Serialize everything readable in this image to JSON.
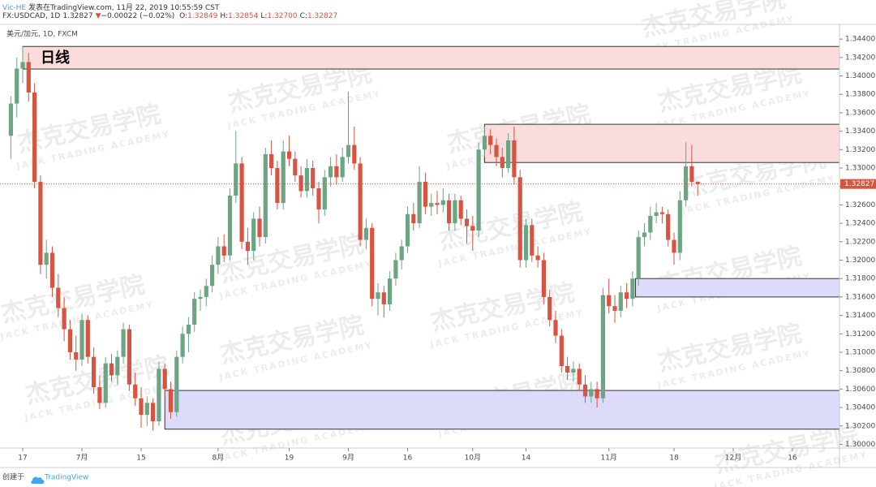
{
  "header": {
    "author": "Vic-HE",
    "published": "发表在TradingView.com, 11月 22, 2019 10:55:59 CST",
    "symbol": "FX:USDCAD, 1D",
    "last": "1.32827",
    "arrow": "▼",
    "change": "−0.00022 (−0.02%)",
    "ohlc": [
      {
        "label": "O:",
        "value": "1.32849"
      },
      {
        "label": "H:",
        "value": "1.32854"
      },
      {
        "label": "L:",
        "value": "1.32700"
      },
      {
        "label": "C:",
        "value": "1.32827"
      }
    ]
  },
  "footer": {
    "created": "创建于",
    "brand": "TradingView"
  },
  "watermark": {
    "cn": "杰克交易学院",
    "en": "JACK TRADING ACADEMY"
  },
  "chart_data": {
    "type": "candlestick",
    "pane_label": "美元/加元, 1D, FXCM",
    "up_color": "#6ba583",
    "down_color": "#d75442",
    "price_line_color": "#d75442",
    "ylim": [
      1.2996,
      1.3456
    ],
    "yticks": [
      {
        "value": 1.3,
        "label": "1.30000"
      },
      {
        "value": 1.302,
        "label": "1.30200"
      },
      {
        "value": 1.304,
        "label": "1.30400"
      },
      {
        "value": 1.306,
        "label": "1.30600"
      },
      {
        "value": 1.308,
        "label": "1.30800"
      },
      {
        "value": 1.31,
        "label": "1.31000"
      },
      {
        "value": 1.312,
        "label": "1.31200"
      },
      {
        "value": 1.314,
        "label": "1.31400"
      },
      {
        "value": 1.316,
        "label": "1.31600"
      },
      {
        "value": 1.318,
        "label": "1.31800"
      },
      {
        "value": 1.32,
        "label": "1.32000"
      },
      {
        "value": 1.322,
        "label": "1.32200"
      },
      {
        "value": 1.324,
        "label": "1.32400"
      },
      {
        "value": 1.326,
        "label": "1.32600"
      },
      {
        "value": 1.328,
        "label": "1.32800"
      },
      {
        "value": 1.33,
        "label": "1.33000"
      },
      {
        "value": 1.332,
        "label": "1.33200"
      },
      {
        "value": 1.334,
        "label": "1.33400"
      },
      {
        "value": 1.336,
        "label": "1.33600"
      },
      {
        "value": 1.338,
        "label": "1.33800"
      },
      {
        "value": 1.34,
        "label": "1.34000"
      },
      {
        "value": 1.342,
        "label": "1.34200"
      },
      {
        "value": 1.344,
        "label": "1.34400"
      }
    ],
    "categories": [
      null,
      null,
      "17",
      null,
      null,
      null,
      null,
      null,
      null,
      null,
      null,
      null,
      "7月",
      null,
      null,
      null,
      null,
      null,
      null,
      null,
      null,
      null,
      "15",
      null,
      null,
      null,
      null,
      null,
      null,
      null,
      null,
      null,
      null,
      null,
      null,
      "8月",
      null,
      null,
      null,
      null,
      null,
      null,
      null,
      null,
      null,
      null,
      null,
      "19",
      null,
      null,
      null,
      null,
      null,
      null,
      null,
      null,
      null,
      "9月",
      null,
      null,
      null,
      null,
      null,
      null,
      null,
      null,
      null,
      "16",
      null,
      null,
      null,
      null,
      null,
      null,
      null,
      null,
      null,
      null,
      "10月",
      null,
      null,
      null,
      null,
      null,
      null,
      null,
      null,
      "14",
      null,
      null,
      null,
      null,
      null,
      null,
      null,
      null,
      null,
      null,
      null,
      null,
      null,
      "11月",
      null,
      null,
      null,
      null,
      null,
      null,
      null,
      null,
      null,
      null,
      "18",
      null,
      null,
      null,
      null,
      null,
      null,
      null,
      null,
      null,
      "12月",
      null,
      null,
      null,
      null,
      null,
      null,
      null,
      null,
      null,
      "16"
    ],
    "ohlc": [
      [
        1.3335,
        1.3378,
        1.331,
        1.337
      ],
      [
        1.337,
        1.342,
        1.3355,
        1.3408
      ],
      [
        1.3408,
        1.3432,
        1.3392,
        1.3415
      ],
      [
        1.3415,
        1.3425,
        1.3372,
        1.3382
      ],
      [
        1.3382,
        1.3392,
        1.3278,
        1.3285
      ],
      [
        1.3285,
        1.3292,
        1.3185,
        1.3195
      ],
      [
        1.3195,
        1.3222,
        1.318,
        1.3208
      ],
      [
        1.3208,
        1.3215,
        1.316,
        1.317
      ],
      [
        1.317,
        1.3185,
        1.3138,
        1.3148
      ],
      [
        1.3148,
        1.316,
        1.3112,
        1.3125
      ],
      [
        1.3125,
        1.3135,
        1.3092,
        1.31
      ],
      [
        1.31,
        1.3118,
        1.308,
        1.3092
      ],
      [
        1.3092,
        1.3142,
        1.3085,
        1.3135
      ],
      [
        1.3135,
        1.314,
        1.3088,
        1.3095
      ],
      [
        1.3095,
        1.3105,
        1.3055,
        1.3062
      ],
      [
        1.3062,
        1.3075,
        1.3038,
        1.3045
      ],
      [
        1.3045,
        1.3095,
        1.304,
        1.3088
      ],
      [
        1.3088,
        1.3098,
        1.3068,
        1.3075
      ],
      [
        1.3075,
        1.3102,
        1.3065,
        1.3095
      ],
      [
        1.3095,
        1.3132,
        1.3088,
        1.3125
      ],
      [
        1.3125,
        1.313,
        1.3058,
        1.3065
      ],
      [
        1.3065,
        1.3078,
        1.3042,
        1.305
      ],
      [
        1.305,
        1.3062,
        1.3018,
        1.3032
      ],
      [
        1.3032,
        1.3052,
        1.302,
        1.3045
      ],
      [
        1.3045,
        1.305,
        1.3015,
        1.3025
      ],
      [
        1.3025,
        1.309,
        1.302,
        1.3082
      ],
      [
        1.3082,
        1.3088,
        1.3052,
        1.306
      ],
      [
        1.306,
        1.3068,
        1.3028,
        1.3035
      ],
      [
        1.3035,
        1.3102,
        1.303,
        1.3095
      ],
      [
        1.3095,
        1.3128,
        1.3088,
        1.312
      ],
      [
        1.312,
        1.3138,
        1.31,
        1.313
      ],
      [
        1.313,
        1.3165,
        1.3122,
        1.3158
      ],
      [
        1.3158,
        1.3168,
        1.3145,
        1.316
      ],
      [
        1.316,
        1.318,
        1.315,
        1.3172
      ],
      [
        1.3172,
        1.3205,
        1.3165,
        1.3195
      ],
      [
        1.3195,
        1.3225,
        1.3185,
        1.3215
      ],
      [
        1.3215,
        1.3228,
        1.3198,
        1.3205
      ],
      [
        1.3205,
        1.3278,
        1.32,
        1.327
      ],
      [
        1.327,
        1.334,
        1.3262,
        1.3305
      ],
      [
        1.3305,
        1.3312,
        1.3212,
        1.322
      ],
      [
        1.322,
        1.3235,
        1.3195,
        1.321
      ],
      [
        1.321,
        1.3252,
        1.32,
        1.3245
      ],
      [
        1.3245,
        1.3258,
        1.3215,
        1.3225
      ],
      [
        1.3225,
        1.3322,
        1.3218,
        1.3315
      ],
      [
        1.3315,
        1.333,
        1.3292,
        1.33
      ],
      [
        1.33,
        1.3308,
        1.3255,
        1.3262
      ],
      [
        1.3262,
        1.333,
        1.3255,
        1.3318
      ],
      [
        1.3318,
        1.3335,
        1.3302,
        1.331
      ],
      [
        1.331,
        1.3318,
        1.3285,
        1.3292
      ],
      [
        1.3292,
        1.3302,
        1.3268,
        1.3275
      ],
      [
        1.3275,
        1.331,
        1.3268,
        1.33
      ],
      [
        1.33,
        1.3308,
        1.327,
        1.3278
      ],
      [
        1.3278,
        1.3285,
        1.324,
        1.3255
      ],
      [
        1.3255,
        1.3298,
        1.3248,
        1.329
      ],
      [
        1.329,
        1.3312,
        1.328,
        1.3302
      ],
      [
        1.3302,
        1.3315,
        1.3282,
        1.329
      ],
      [
        1.329,
        1.3322,
        1.3285,
        1.3312
      ],
      [
        1.3312,
        1.3383,
        1.3305,
        1.3325
      ],
      [
        1.3325,
        1.3345,
        1.3298,
        1.3305
      ],
      [
        1.3305,
        1.3312,
        1.3215,
        1.3222
      ],
      [
        1.3222,
        1.3245,
        1.3212,
        1.3235
      ],
      [
        1.3235,
        1.324,
        1.315,
        1.3158
      ],
      [
        1.3158,
        1.3175,
        1.314,
        1.3165
      ],
      [
        1.3165,
        1.3172,
        1.3138,
        1.3152
      ],
      [
        1.3152,
        1.3188,
        1.3145,
        1.318
      ],
      [
        1.318,
        1.3208,
        1.3172,
        1.32
      ],
      [
        1.32,
        1.3222,
        1.319,
        1.3215
      ],
      [
        1.3215,
        1.3258,
        1.3208,
        1.325
      ],
      [
        1.325,
        1.3262,
        1.3232,
        1.324
      ],
      [
        1.324,
        1.3302,
        1.3235,
        1.3285
      ],
      [
        1.3285,
        1.3295,
        1.325,
        1.3258
      ],
      [
        1.3258,
        1.3272,
        1.3248,
        1.3262
      ],
      [
        1.3262,
        1.3275,
        1.325,
        1.326
      ],
      [
        1.326,
        1.3278,
        1.3252,
        1.3265
      ],
      [
        1.3265,
        1.3272,
        1.3232,
        1.324
      ],
      [
        1.324,
        1.3272,
        1.3232,
        1.3265
      ],
      [
        1.3265,
        1.327,
        1.3238,
        1.3245
      ],
      [
        1.3245,
        1.3255,
        1.3218,
        1.3237
      ],
      [
        1.3237,
        1.3248,
        1.321,
        1.3232
      ],
      [
        1.3232,
        1.3328,
        1.3225,
        1.332
      ],
      [
        1.332,
        1.3345,
        1.3312,
        1.3335
      ],
      [
        1.3335,
        1.3342,
        1.3315,
        1.3325
      ],
      [
        1.3325,
        1.3332,
        1.3302,
        1.3312
      ],
      [
        1.3312,
        1.3322,
        1.329,
        1.33
      ],
      [
        1.33,
        1.3338,
        1.3295,
        1.333
      ],
      [
        1.333,
        1.3345,
        1.3282,
        1.329
      ],
      [
        1.329,
        1.3298,
        1.3192,
        1.32
      ],
      [
        1.32,
        1.3245,
        1.3192,
        1.3238
      ],
      [
        1.3238,
        1.3245,
        1.3198,
        1.3205
      ],
      [
        1.3205,
        1.3215,
        1.3192,
        1.32
      ],
      [
        1.32,
        1.3208,
        1.3152,
        1.316
      ],
      [
        1.316,
        1.3168,
        1.3128,
        1.3135
      ],
      [
        1.3135,
        1.3145,
        1.311,
        1.3118
      ],
      [
        1.3118,
        1.3125,
        1.3078,
        1.3085
      ],
      [
        1.3085,
        1.3095,
        1.307,
        1.3078
      ],
      [
        1.3078,
        1.309,
        1.3068,
        1.3082
      ],
      [
        1.3082,
        1.3088,
        1.3058,
        1.3065
      ],
      [
        1.3065,
        1.3075,
        1.3045,
        1.3052
      ],
      [
        1.3052,
        1.3068,
        1.3045,
        1.306
      ],
      [
        1.306,
        1.3068,
        1.304,
        1.305
      ],
      [
        1.305,
        1.317,
        1.3045,
        1.3162
      ],
      [
        1.3162,
        1.318,
        1.3142,
        1.315
      ],
      [
        1.315,
        1.3162,
        1.3132,
        1.3145
      ],
      [
        1.3145,
        1.3172,
        1.3138,
        1.3165
      ],
      [
        1.3165,
        1.3175,
        1.3148,
        1.3158
      ],
      [
        1.3158,
        1.3188,
        1.315,
        1.318
      ],
      [
        1.318,
        1.3232,
        1.3172,
        1.3225
      ],
      [
        1.3225,
        1.324,
        1.3215,
        1.323
      ],
      [
        1.323,
        1.3258,
        1.3222,
        1.3248
      ],
      [
        1.3248,
        1.3262,
        1.324,
        1.3252
      ],
      [
        1.3252,
        1.3258,
        1.324,
        1.325
      ],
      [
        1.325,
        1.3255,
        1.3215,
        1.3222
      ],
      [
        1.3222,
        1.323,
        1.3195,
        1.3208
      ],
      [
        1.3208,
        1.3275,
        1.32,
        1.3265
      ],
      [
        1.3265,
        1.3328,
        1.3258,
        1.3302
      ],
      [
        1.3302,
        1.3325,
        1.328,
        1.3285
      ],
      [
        1.32849,
        1.32854,
        1.327,
        1.32827
      ],
      null,
      null,
      null,
      null,
      null,
      null,
      null,
      null,
      null,
      null,
      null,
      null,
      null,
      null,
      null,
      null
    ],
    "zones": [
      {
        "from": 2,
        "top": 1.3432,
        "bottom": 1.34075,
        "color": "#fadcdc",
        "label": "日线"
      },
      {
        "from": 80,
        "top": 1.33475,
        "bottom": 1.3306,
        "color": "#fadcdc"
      },
      {
        "from": 105.5,
        "top": 1.318,
        "bottom": 1.316,
        "color": "#dcdcfa"
      },
      {
        "from": 26,
        "top": 1.30585,
        "bottom": 1.30165,
        "color": "#dcdcfa"
      }
    ]
  }
}
